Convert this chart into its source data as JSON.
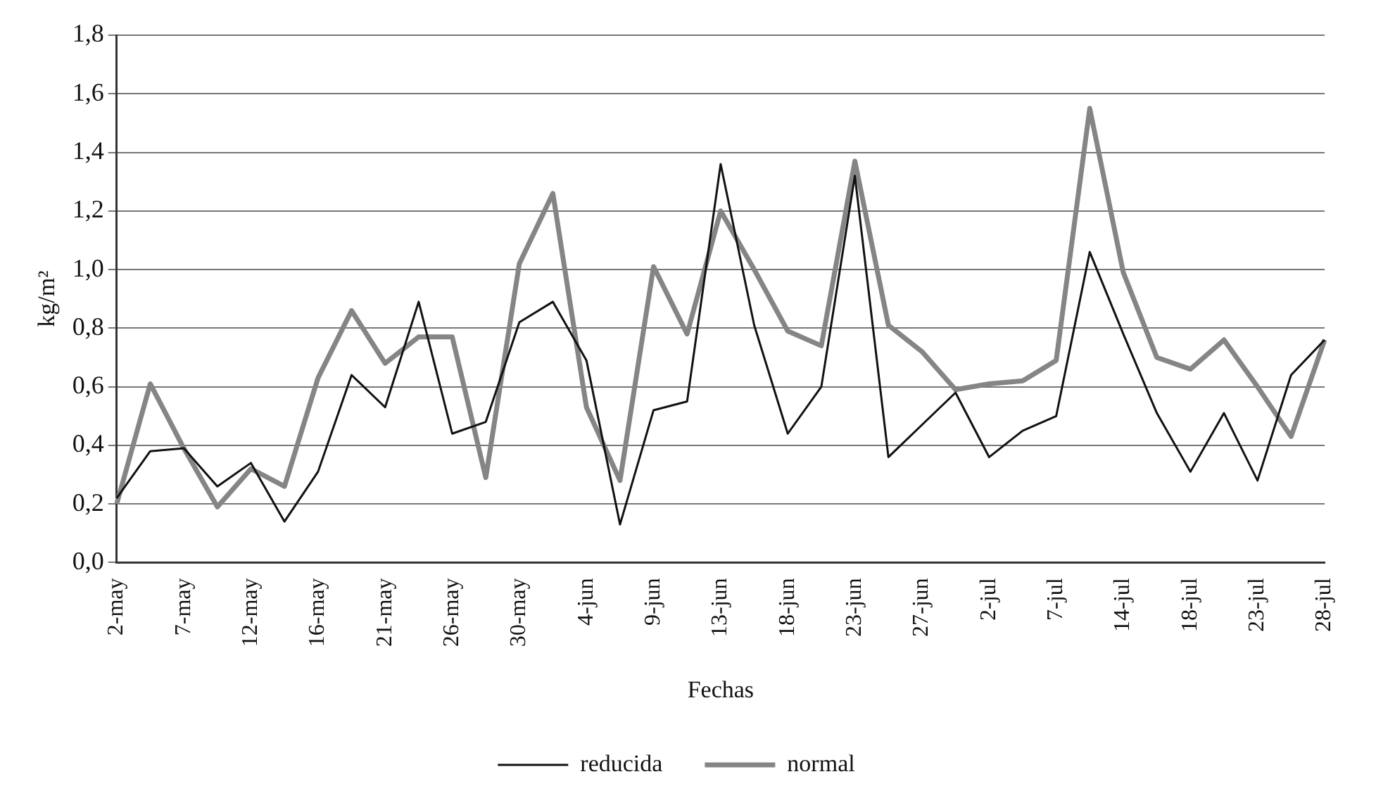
{
  "chart_data": {
    "type": "line",
    "xlabel": "Fechas",
    "ylabel": "kg/m²",
    "categories": [
      "2-may",
      null,
      "7-may",
      null,
      "12-may",
      null,
      "16-may",
      null,
      "21-may",
      null,
      "26-may",
      null,
      "30-may",
      null,
      "4-jun",
      null,
      "9-jun",
      null,
      "13-jun",
      null,
      "18-jun",
      null,
      "23-jun",
      null,
      "27-jun",
      null,
      "2-jul",
      null,
      "7-jul",
      null,
      "14-jul",
      null,
      "18-jul",
      null,
      "23-jul",
      null,
      "28-jul"
    ],
    "series": [
      {
        "name": "reducida",
        "color": "#111111",
        "values": [
          0.22,
          0.38,
          0.39,
          0.26,
          0.34,
          0.14,
          0.31,
          0.64,
          0.53,
          0.89,
          0.44,
          0.48,
          0.82,
          0.89,
          0.69,
          0.13,
          0.52,
          0.55,
          1.36,
          0.81,
          0.44,
          0.6,
          1.32,
          0.36,
          0.47,
          0.58,
          0.36,
          0.45,
          0.5,
          1.06,
          0.78,
          0.51,
          0.31,
          0.51,
          0.28,
          0.64,
          0.76
        ]
      },
      {
        "name": "normal",
        "color": "#858585",
        "values": [
          0.2,
          0.61,
          0.39,
          0.19,
          0.32,
          0.26,
          0.63,
          0.86,
          0.68,
          0.77,
          0.77,
          0.29,
          1.02,
          1.26,
          0.53,
          0.28,
          1.01,
          0.78,
          1.2,
          1.0,
          0.79,
          0.74,
          1.37,
          0.81,
          0.72,
          0.59,
          0.61,
          0.62,
          0.69,
          1.55,
          0.99,
          0.7,
          0.66,
          0.76,
          0.6,
          0.43,
          0.76
        ]
      }
    ],
    "ylim": [
      0,
      1.8
    ],
    "yticks": [
      {
        "value": 0,
        "label": "0,0"
      },
      {
        "value": 0.2,
        "label": "0,2"
      },
      {
        "value": 0.4,
        "label": "0,4"
      },
      {
        "value": 0.6,
        "label": "0,6"
      },
      {
        "value": 0.8,
        "label": "0,8"
      },
      {
        "value": 1,
        "label": "1,0"
      },
      {
        "value": 1.2,
        "label": "1,2"
      },
      {
        "value": 1.4,
        "label": "1,4"
      },
      {
        "value": 1.6,
        "label": "1,6"
      },
      {
        "value": 1.8,
        "label": "1,8"
      }
    ],
    "grid": "y",
    "legend": "bottom",
    "marker": "none",
    "line_style": "solid"
  }
}
